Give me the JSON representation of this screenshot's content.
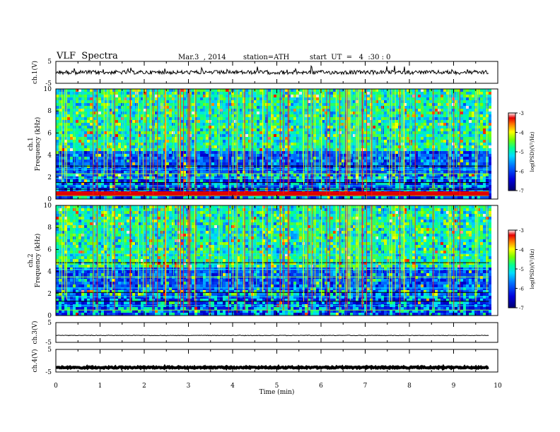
{
  "header": {
    "title": "VLF  Spectra",
    "date": "Mar.3  , 2014",
    "station": "station=ATH",
    "start": "start  UT  =   4  :30 : 0"
  },
  "colorbar": {
    "label": "log(PSD)(V²/Hz)",
    "ticks": [
      "-3",
      "-4",
      "-5",
      "-6",
      "-7"
    ]
  },
  "chart_data": {
    "type": "heatmap",
    "xlabel": "Time  (min)",
    "xlim": [
      0,
      10
    ],
    "x_ticks": [
      "0",
      "1",
      "2",
      "3",
      "4",
      "5",
      "6",
      "7",
      "8",
      "9",
      "10"
    ],
    "panels": [
      {
        "kind": "waveform",
        "ylabel": "ch.1(V)",
        "ylim": [
          -5,
          5
        ],
        "y_ticks": [
          "5",
          "-5"
        ]
      },
      {
        "kind": "spectrogram",
        "ylabel": "ch.1\nFrequency  (kHz)",
        "ylim": [
          0,
          10
        ],
        "y_ticks": [
          "10",
          "8",
          "6",
          "4",
          "2",
          "0"
        ],
        "zlim": [
          -7,
          -3
        ]
      },
      {
        "kind": "spectrogram",
        "ylabel": "ch.2\nFrequency  (kHz)",
        "ylim": [
          0,
          10
        ],
        "y_ticks": [
          "10",
          "8",
          "6",
          "4",
          "2",
          "0"
        ],
        "zlim": [
          -7,
          -3
        ]
      },
      {
        "kind": "waveform",
        "ylabel": "ch.3(V)",
        "ylim": [
          -5,
          5
        ],
        "y_ticks": [
          "5",
          "-5"
        ]
      },
      {
        "kind": "waveform",
        "ylabel": "ch.4(V)",
        "ylim": [
          -5,
          5
        ],
        "y_ticks": [
          "5",
          "-5"
        ]
      }
    ],
    "data_end_min": 9.8,
    "colors": {
      "low": "#000080",
      "mid": "#00c8ff",
      "high": "#ff0000",
      "top": "#ffffff"
    }
  }
}
